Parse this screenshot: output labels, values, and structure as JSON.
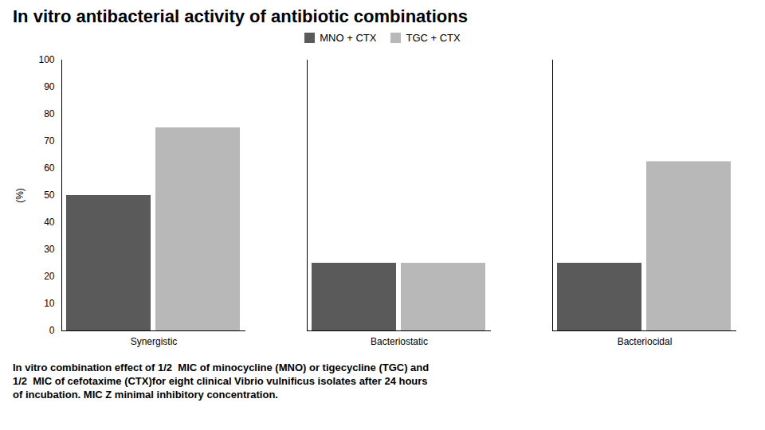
{
  "chart_data": {
    "type": "bar",
    "title": "In vitro antibacterial activity of antibiotic combinations",
    "subtitle": [
      "In vitro combination effect of 1/2  MIC of minocycline (MNO) or tigecycline (TGC) and",
      "1/2  MIC of cefotaxime (CTX)for eight clinical Vibrio vulnificus isolates after 24 hours",
      "of incubation. MIC Z minimal inhibitory concentration."
    ],
    "categories": [
      "Synergistic",
      "Bacteriostatic",
      "Bacteriocidal"
    ],
    "series": [
      {
        "name": "MNO + CTX",
        "color": "#5a5a5a",
        "values": [
          50,
          25,
          25
        ]
      },
      {
        "name": "TGC + CTX",
        "color": "#b8b8b8",
        "values": [
          75,
          25,
          62.5
        ]
      }
    ],
    "ylabel": "(%)",
    "ylim": [
      0,
      100
    ],
    "yticks": [
      0,
      10,
      20,
      30,
      40,
      50,
      60,
      70,
      80,
      90,
      100
    ],
    "legend": "top",
    "grid": false
  }
}
